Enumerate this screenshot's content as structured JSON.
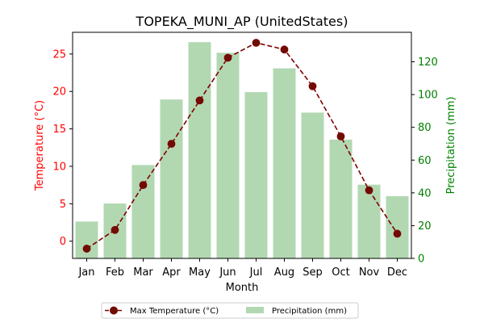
{
  "chart_data": {
    "type": "bar",
    "title": "TOPEKA_MUNI_AP (UnitedStates)",
    "xlabel": "Month",
    "ylabel_left": "Temperature (°C)",
    "ylabel_right": "Precipitation (mm)",
    "categories": [
      "Jan",
      "Feb",
      "Mar",
      "Apr",
      "May",
      "Jun",
      "Jul",
      "Aug",
      "Sep",
      "Oct",
      "Nov",
      "Dec"
    ],
    "left_ylim": [
      -2.3,
      27.9
    ],
    "right_ylim": [
      0,
      138
    ],
    "left_ticks": [
      0,
      5,
      10,
      15,
      20,
      25
    ],
    "right_ticks": [
      0,
      20,
      40,
      60,
      80,
      100,
      120
    ],
    "grid": false,
    "legend_position": "bottom-center",
    "series": [
      {
        "name": "Max Temperature (°C)",
        "type": "line",
        "axis": "left",
        "color": "#800000",
        "values": [
          -1.0,
          1.5,
          7.5,
          13.0,
          18.8,
          24.5,
          26.5,
          25.6,
          20.7,
          14.0,
          6.8,
          1.0
        ]
      },
      {
        "name": "Precipitation (mm)",
        "type": "bar",
        "axis": "right",
        "color": "#b2d8b2",
        "values": [
          22.5,
          33.5,
          57.0,
          97.0,
          132.0,
          125.5,
          101.5,
          116.0,
          89.0,
          72.5,
          45.0,
          38.0
        ]
      }
    ],
    "colors": {
      "left_axis": "#ff0000",
      "right_axis": "#008000",
      "text": "#000000"
    }
  }
}
